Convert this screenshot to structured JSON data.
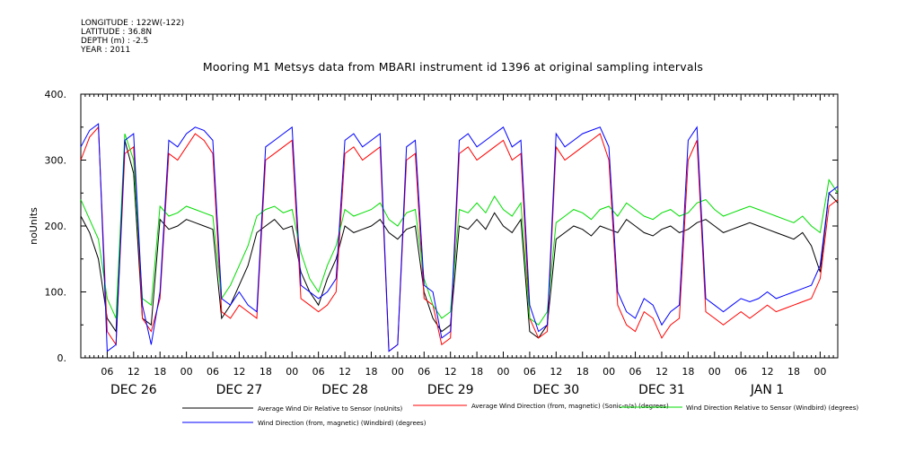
{
  "header": {
    "longitude": "LONGITUDE : 122W(-122)",
    "latitude": "LATITUDE : 36.8N",
    "depth": "DEPTH (m) : -2.5",
    "year": "YEAR : 2011"
  },
  "chart_data": {
    "type": "line",
    "title": "Mooring M1 Metsys data from MBARI instrument id 1396 at original sampling intervals",
    "ylabel": "noUnits",
    "xlabel": "",
    "ylim": [
      0,
      400
    ],
    "y_ticks": [
      0,
      100,
      200,
      300,
      400
    ],
    "y_tick_labels": [
      "0.",
      "100.",
      "200.",
      "300.",
      "400."
    ],
    "x_range_hours": [
      0,
      172
    ],
    "hour_tick_labels": [
      "06",
      "12",
      "18",
      "00",
      "06",
      "12",
      "18",
      "00",
      "06",
      "12",
      "18",
      "00",
      "06",
      "12",
      "18",
      "00",
      "06",
      "12",
      "18",
      "00",
      "06",
      "12",
      "18",
      "00",
      "06",
      "12",
      "18",
      "00"
    ],
    "day_labels": [
      "DEC 26",
      "DEC 27",
      "DEC 28",
      "DEC 29",
      "DEC 30",
      "DEC 31",
      "JAN  1"
    ],
    "grid": false,
    "legend_position": "bottom",
    "series": [
      {
        "name": "Average Wind Dir Relative to Sensor (noUnits)",
        "color": "#000000",
        "x": [
          0,
          2,
          4,
          6,
          8,
          10,
          12,
          14,
          16,
          18,
          20,
          22,
          24,
          26,
          28,
          30,
          32,
          34,
          36,
          38,
          40,
          42,
          44,
          46,
          48,
          50,
          52,
          54,
          56,
          58,
          60,
          62,
          64,
          66,
          68,
          70,
          72,
          74,
          76,
          78,
          80,
          82,
          84,
          86,
          88,
          90,
          92,
          94,
          96,
          98,
          100,
          102,
          104,
          106,
          108,
          110,
          112,
          114,
          116,
          118,
          120,
          122,
          124,
          126,
          128,
          130,
          132,
          134,
          136,
          138,
          140,
          142,
          144,
          146,
          148,
          150,
          152,
          154,
          156,
          158,
          160,
          162,
          164,
          166,
          168,
          170,
          172
        ],
        "values": [
          215,
          190,
          150,
          60,
          40,
          330,
          280,
          60,
          50,
          210,
          195,
          200,
          210,
          205,
          200,
          195,
          60,
          80,
          110,
          140,
          190,
          200,
          210,
          195,
          200,
          130,
          100,
          80,
          120,
          150,
          200,
          190,
          195,
          200,
          210,
          190,
          180,
          195,
          200,
          100,
          60,
          40,
          50,
          200,
          195,
          210,
          195,
          220,
          200,
          190,
          210,
          40,
          30,
          50,
          180,
          190,
          200,
          195,
          185,
          200,
          195,
          190,
          210,
          200,
          190,
          185,
          195,
          200,
          190,
          195,
          205,
          210,
          200,
          190,
          195,
          200,
          205,
          200,
          195,
          190,
          185,
          180,
          190,
          170,
          130,
          250,
          235
        ]
      },
      {
        "name": "Average Wind Direction (from, magnetic) (Sonic-n/a) (degrees)",
        "color": "#ff0000",
        "x": [
          0,
          2,
          4,
          6,
          8,
          10,
          12,
          14,
          16,
          18,
          20,
          22,
          24,
          26,
          28,
          30,
          32,
          34,
          36,
          38,
          40,
          42,
          44,
          46,
          48,
          50,
          52,
          54,
          56,
          58,
          60,
          62,
          64,
          66,
          68,
          70,
          72,
          74,
          76,
          78,
          80,
          82,
          84,
          86,
          88,
          90,
          92,
          94,
          96,
          98,
          100,
          102,
          104,
          106,
          108,
          110,
          112,
          114,
          116,
          118,
          120,
          122,
          124,
          126,
          128,
          130,
          132,
          134,
          136,
          138,
          140,
          142,
          144,
          146,
          148,
          150,
          152,
          154,
          156,
          158,
          160,
          162,
          164,
          166,
          168,
          170,
          172
        ],
        "values": [
          300,
          335,
          350,
          40,
          20,
          310,
          320,
          60,
          40,
          90,
          310,
          300,
          320,
          340,
          330,
          310,
          70,
          60,
          80,
          70,
          60,
          300,
          310,
          320,
          330,
          90,
          80,
          70,
          80,
          100,
          310,
          320,
          300,
          310,
          320,
          10,
          20,
          300,
          310,
          90,
          80,
          20,
          30,
          310,
          320,
          300,
          310,
          320,
          330,
          300,
          310,
          60,
          30,
          40,
          320,
          300,
          310,
          320,
          330,
          340,
          300,
          80,
          50,
          40,
          70,
          60,
          30,
          50,
          60,
          300,
          330,
          70,
          60,
          50,
          60,
          70,
          60,
          70,
          80,
          70,
          75,
          80,
          85,
          90,
          120,
          230,
          240
        ]
      },
      {
        "name": "Wind Direction Relative to Sensor (Windbird) (degrees)",
        "color": "#00dd00",
        "x": [
          0,
          2,
          4,
          6,
          8,
          10,
          12,
          14,
          16,
          18,
          20,
          22,
          24,
          26,
          28,
          30,
          32,
          34,
          36,
          38,
          40,
          42,
          44,
          46,
          48,
          50,
          52,
          54,
          56,
          58,
          60,
          62,
          64,
          66,
          68,
          70,
          72,
          74,
          76,
          78,
          80,
          82,
          84,
          86,
          88,
          90,
          92,
          94,
          96,
          98,
          100,
          102,
          104,
          106,
          108,
          110,
          112,
          114,
          116,
          118,
          120,
          122,
          124,
          126,
          128,
          130,
          132,
          134,
          136,
          138,
          140,
          142,
          144,
          146,
          148,
          150,
          152,
          154,
          156,
          158,
          160,
          162,
          164,
          166,
          168,
          170,
          172
        ],
        "values": [
          240,
          210,
          180,
          90,
          60,
          340,
          300,
          90,
          80,
          230,
          215,
          220,
          230,
          225,
          220,
          215,
          90,
          110,
          140,
          170,
          215,
          225,
          230,
          220,
          225,
          160,
          120,
          100,
          140,
          170,
          225,
          215,
          220,
          225,
          235,
          210,
          200,
          220,
          225,
          120,
          80,
          60,
          70,
          225,
          220,
          235,
          220,
          245,
          225,
          215,
          235,
          60,
          50,
          70,
          205,
          215,
          225,
          220,
          210,
          225,
          230,
          215,
          235,
          225,
          215,
          210,
          220,
          225,
          215,
          220,
          235,
          240,
          225,
          215,
          220,
          225,
          230,
          225,
          220,
          215,
          210,
          205,
          215,
          200,
          190,
          270,
          250
        ]
      },
      {
        "name": "Wind Direction (from, magnetic) (Windbird) (degrees)",
        "color": "#0000ff",
        "x": [
          0,
          2,
          4,
          6,
          8,
          10,
          12,
          14,
          16,
          18,
          20,
          22,
          24,
          26,
          28,
          30,
          32,
          34,
          36,
          38,
          40,
          42,
          44,
          46,
          48,
          50,
          52,
          54,
          56,
          58,
          60,
          62,
          64,
          66,
          68,
          70,
          72,
          74,
          76,
          78,
          80,
          82,
          84,
          86,
          88,
          90,
          92,
          94,
          96,
          98,
          100,
          102,
          104,
          106,
          108,
          110,
          112,
          114,
          116,
          118,
          120,
          122,
          124,
          126,
          128,
          130,
          132,
          134,
          136,
          138,
          140,
          142,
          144,
          146,
          148,
          150,
          152,
          154,
          156,
          158,
          160,
          162,
          164,
          166,
          168,
          170,
          172
        ],
        "values": [
          320,
          345,
          355,
          10,
          20,
          330,
          340,
          80,
          20,
          100,
          330,
          320,
          340,
          350,
          345,
          330,
          90,
          80,
          100,
          80,
          70,
          320,
          330,
          340,
          350,
          110,
          100,
          90,
          100,
          120,
          330,
          340,
          320,
          330,
          340,
          10,
          20,
          320,
          330,
          110,
          100,
          30,
          40,
          330,
          340,
          320,
          330,
          340,
          350,
          320,
          330,
          80,
          40,
          50,
          340,
          320,
          330,
          340,
          345,
          350,
          320,
          100,
          70,
          60,
          90,
          80,
          50,
          70,
          80,
          330,
          350,
          90,
          80,
          70,
          80,
          90,
          85,
          90,
          100,
          90,
          95,
          100,
          105,
          110,
          140,
          250,
          260
        ]
      }
    ]
  }
}
